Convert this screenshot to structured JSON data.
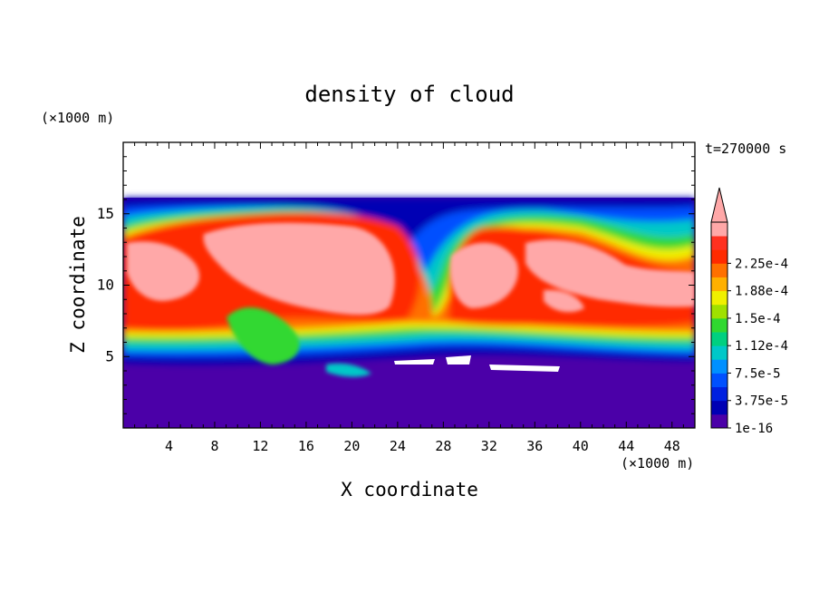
{
  "chart_data": {
    "type": "heatmap",
    "title": "density of cloud",
    "xlabel": "X coordinate",
    "ylabel": "Z coordinate",
    "x_unit": "(×1000 m)",
    "y_unit": "(×1000 m)",
    "time_label": "t=270000 s",
    "xlim": [
      0,
      50
    ],
    "ylim": [
      0,
      20
    ],
    "x_ticks": [
      4,
      8,
      12,
      16,
      20,
      24,
      28,
      32,
      36,
      40,
      44,
      48
    ],
    "y_ticks": [
      5,
      10,
      15
    ],
    "domain_top": 16,
    "colorbar": {
      "labels": [
        "1e-16",
        "3.75e-5",
        "7.5e-5",
        "1.12e-4",
        "1.5e-4",
        "1.88e-4",
        "2.25e-4"
      ],
      "levels": [
        1e-16,
        1.875e-05,
        3.75e-05,
        5.625e-05,
        7.5e-05,
        9.375e-05,
        0.000112,
        0.000131,
        0.00015,
        0.000169,
        0.000188,
        0.000206,
        0.000225,
        0.000244
      ],
      "colors": [
        "#4b00a8",
        "#0000b4",
        "#0020e0",
        "#0050ff",
        "#0090ff",
        "#00c8c8",
        "#00d080",
        "#30d830",
        "#a0e000",
        "#f0f000",
        "#ffb000",
        "#ff7000",
        "#ff2a00",
        "#ff3020",
        "#ffa8a8"
      ],
      "extend": "max"
    },
    "regions": [
      {
        "name": "lower cloud-free layer",
        "x": [
          0,
          50
        ],
        "z": [
          0,
          4
        ]
      },
      {
        "name": "saturated core left",
        "x": [
          0.5,
          24
        ],
        "z": [
          6,
          15.5
        ]
      },
      {
        "name": "saturated core right",
        "x": [
          29,
          50
        ],
        "z": [
          5.5,
          14
        ]
      },
      {
        "name": "low-density band top",
        "x": [
          0,
          50
        ],
        "z": [
          15,
          16
        ]
      }
    ]
  }
}
